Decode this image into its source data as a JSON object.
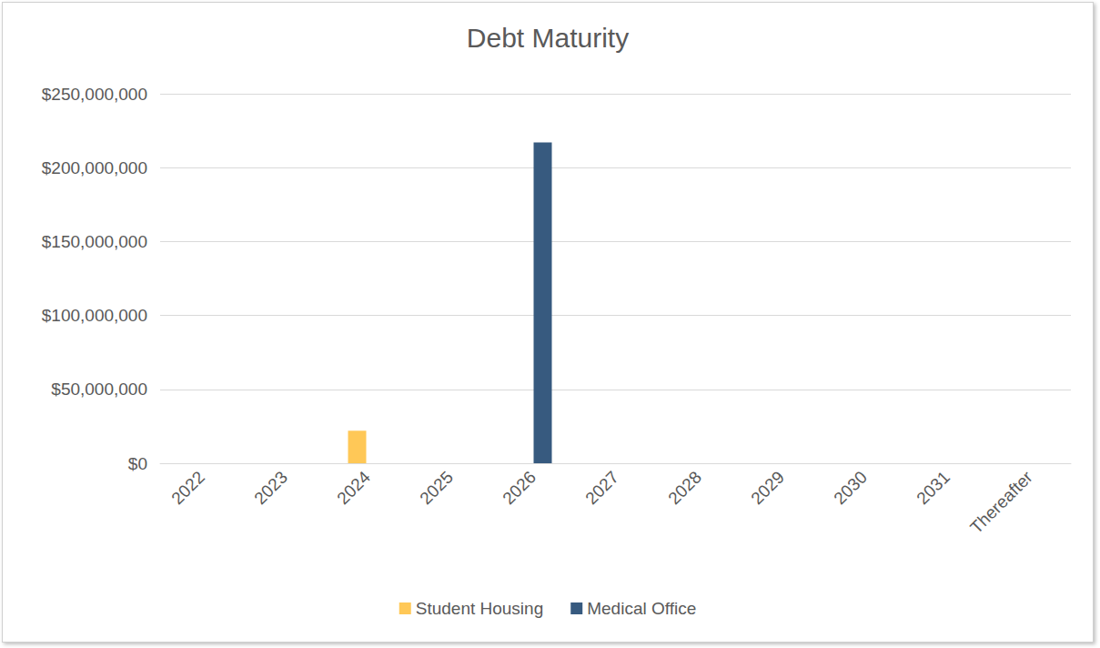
{
  "chart_data": {
    "type": "bar",
    "title": "Debt Maturity",
    "categories": [
      "2022",
      "2023",
      "2024",
      "2025",
      "2026",
      "2027",
      "2028",
      "2029",
      "2030",
      "2031",
      "Thereafter"
    ],
    "series": [
      {
        "name": "Student Housing",
        "color": "#FFC857",
        "values": [
          0,
          0,
          22000000,
          0,
          0,
          0,
          0,
          0,
          0,
          0,
          0
        ]
      },
      {
        "name": "Medical Office",
        "color": "#375A7F",
        "values": [
          0,
          0,
          0,
          0,
          217000000,
          0,
          0,
          0,
          0,
          0,
          0
        ]
      }
    ],
    "ylim": [
      0,
      250000000
    ],
    "yticks": [
      {
        "value": 0,
        "label": "$0"
      },
      {
        "value": 50000000,
        "label": "$50,000,000"
      },
      {
        "value": 100000000,
        "label": "$100,000,000"
      },
      {
        "value": 150000000,
        "label": "$150,000,000"
      },
      {
        "value": 200000000,
        "label": "$200,000,000"
      },
      {
        "value": 250000000,
        "label": "$250,000,000"
      }
    ],
    "grid": true,
    "legend": "bottom"
  }
}
